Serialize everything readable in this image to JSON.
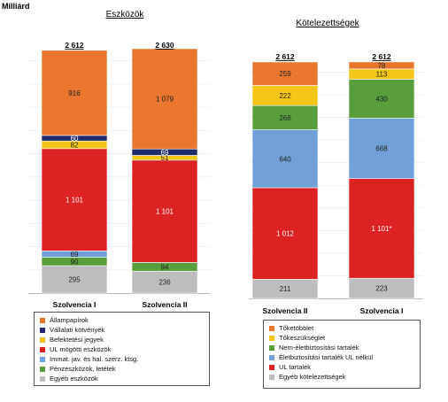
{
  "unit_label": "Milliárd",
  "colors": {
    "allampapirok": "#e8762e",
    "vallalati": "#1f2a6b",
    "befektetesi": "#f5c518",
    "ul": "#dd2222",
    "immat": "#6fa0d8",
    "penzeszkozok": "#5a9e3c",
    "egyeb": "#bdbdbd",
    "eletbiz": "#6fa0d8",
    "nemelet": "#5a9e3c"
  },
  "chart_data": [
    {
      "type": "bar",
      "stacked": true,
      "title": "Eszközök",
      "categories": [
        "Szolvencia I",
        "Szolvencia II"
      ],
      "totals": [
        "2 612",
        "2 630"
      ],
      "series": [
        {
          "name": "Egyéb eszközök",
          "color_key": "egyeb",
          "values": [
            295,
            236
          ],
          "labels": [
            "295",
            "236"
          ]
        },
        {
          "name": "Pénzeszközök, letétek",
          "color_key": "penzeszkozok",
          "values": [
            90,
            94
          ],
          "labels": [
            "90",
            "94"
          ]
        },
        {
          "name": "Immat. jav. és hal. szerz. ktsg.",
          "color_key": "immat",
          "values": [
            69,
            0
          ],
          "labels": [
            "69",
            ""
          ]
        },
        {
          "name": "UL mögötti eszközök",
          "color_key": "ul",
          "values": [
            1101,
            1101
          ],
          "labels": [
            "1 101",
            "1 101"
          ]
        },
        {
          "name": "Befektetési jegyek",
          "color_key": "befektetesi",
          "values": [
            82,
            51
          ],
          "labels": [
            "82",
            "51"
          ]
        },
        {
          "name": "Vállalati kötvények",
          "color_key": "vallalati",
          "values": [
            60,
            69
          ],
          "labels": [
            "60",
            "69"
          ]
        },
        {
          "name": "Állampapírok",
          "color_key": "allampapirok",
          "values": [
            916,
            1079
          ],
          "labels": [
            "916",
            "1 079"
          ]
        }
      ],
      "legend": [
        {
          "name": "Állampapírok",
          "color_key": "allampapirok"
        },
        {
          "name": "Vállalati kötvények",
          "color_key": "vallalati"
        },
        {
          "name": "Befektetési jegyek",
          "color_key": "befektetesi"
        },
        {
          "name": "UL mögötti eszközök",
          "color_key": "ul"
        },
        {
          "name": "Immat. jav. és hal. szerz. ktsg.",
          "color_key": "immat"
        },
        {
          "name": "Pénzeszközök, letétek",
          "color_key": "penzeszkozok"
        },
        {
          "name": "Egyéb eszközök",
          "color_key": "egyeb"
        }
      ]
    },
    {
      "type": "bar",
      "stacked": true,
      "title": "Kötelezettségek",
      "categories": [
        "Szolvencia II",
        "Szolvencia I"
      ],
      "totals": [
        "2 612",
        "2 612"
      ],
      "series": [
        {
          "name": "Egyéb kötelezettségek",
          "color_key": "egyeb",
          "values": [
            211,
            223
          ],
          "labels": [
            "211",
            "223"
          ]
        },
        {
          "name": "UL tartalék",
          "color_key": "ul",
          "values": [
            1012,
            1101
          ],
          "labels": [
            "1 012",
            "1 101*"
          ]
        },
        {
          "name": "Életbiztosítási tartalék UL nélkül",
          "color_key": "eletbiz",
          "values": [
            640,
            668
          ],
          "labels": [
            "640",
            "668"
          ]
        },
        {
          "name": "Nem-életbiztosítási tartalék",
          "color_key": "nemelet",
          "values": [
            268,
            430
          ],
          "labels": [
            "268",
            "430"
          ]
        },
        {
          "name": "Tőkeszükséglet",
          "color_key": "befektetesi",
          "values": [
            222,
            113
          ],
          "labels": [
            "222",
            "113"
          ]
        },
        {
          "name": "Tőketöbblet",
          "color_key": "allampapirok",
          "values": [
            259,
            78
          ],
          "labels": [
            "259",
            "78"
          ]
        }
      ],
      "legend": [
        {
          "name": "Tőketöbblet",
          "color_key": "allampapirok"
        },
        {
          "name": "Tőkeszükséglet",
          "color_key": "befektetesi"
        },
        {
          "name": "Nem-életbiztosítási tartalék",
          "color_key": "nemelet"
        },
        {
          "name": "Életbiztosítási tartalék UL nélkül",
          "color_key": "eletbiz"
        },
        {
          "name": "UL tartalék",
          "color_key": "ul"
        },
        {
          "name": "Egyéb kötelezettségek",
          "color_key": "egyeb"
        }
      ]
    }
  ]
}
